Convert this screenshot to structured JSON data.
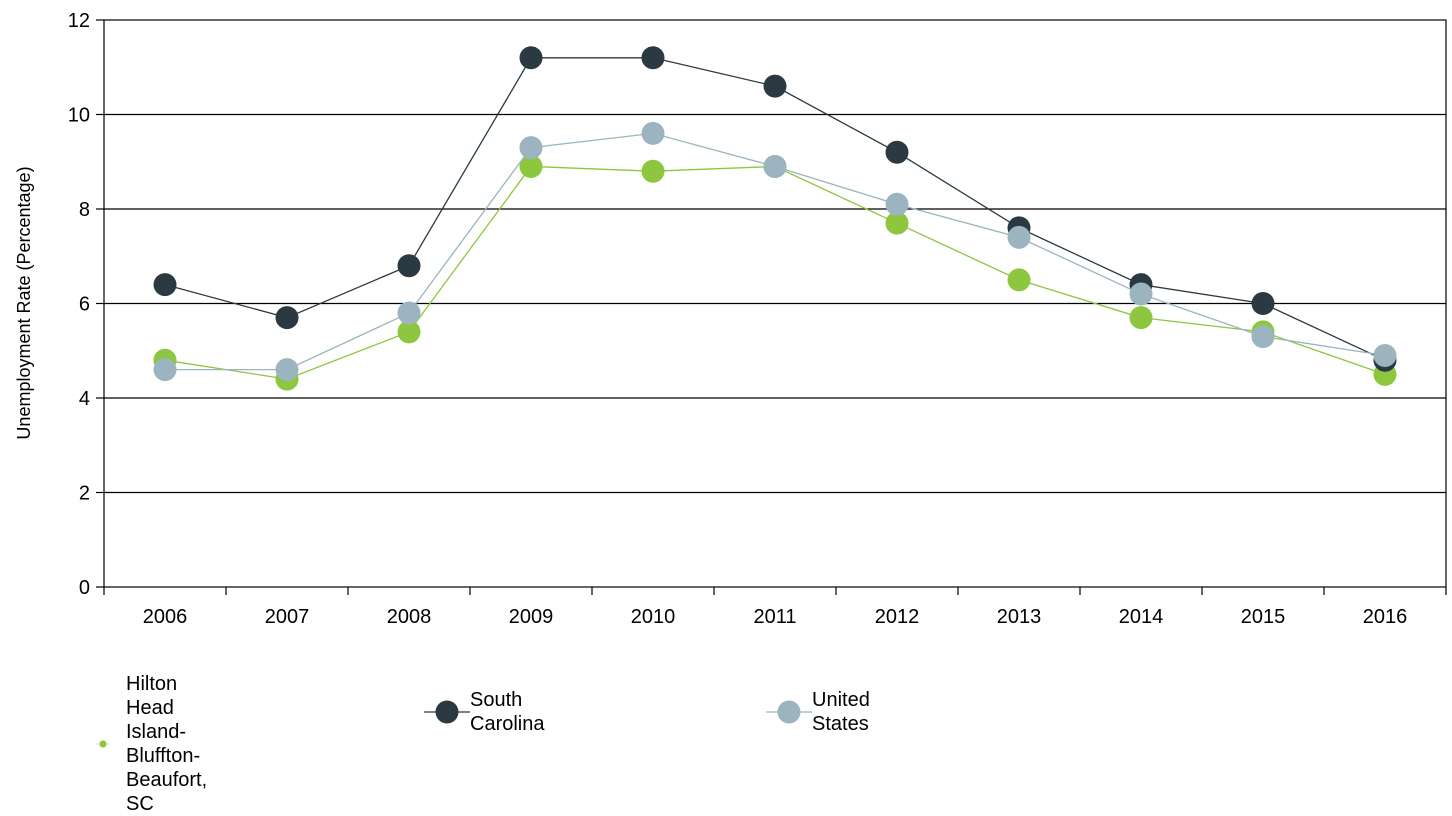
{
  "chart_data": {
    "type": "line",
    "title": "",
    "xlabel": "",
    "ylabel": "Unemployment Rate (Percentage)",
    "ylim": [
      0,
      12
    ],
    "yticks": [
      0,
      2,
      4,
      6,
      8,
      10,
      12
    ],
    "grid": "horizontal",
    "legend_position": "bottom-left",
    "categories": [
      "2006",
      "2007",
      "2008",
      "2009",
      "2010",
      "2011",
      "2012",
      "2013",
      "2014",
      "2015",
      "2016"
    ],
    "series": [
      {
        "name": "Hilton Head Island-Bluffton-Beaufort, SC",
        "name_lines": [
          "Hilton Head",
          "Island-Bluffton-Beaufort,",
          "SC"
        ],
        "color": "#8dc63f",
        "values": [
          4.8,
          4.4,
          5.4,
          8.9,
          8.8,
          8.9,
          7.7,
          6.5,
          5.7,
          5.4,
          4.5
        ]
      },
      {
        "name": "South Carolina",
        "color": "#2b3a42",
        "values": [
          6.4,
          5.7,
          6.8,
          11.2,
          11.2,
          10.6,
          9.2,
          7.6,
          6.4,
          6.0,
          4.8
        ]
      },
      {
        "name": "United States",
        "color": "#9bb4bf",
        "values": [
          4.6,
          4.6,
          5.8,
          9.3,
          9.6,
          8.9,
          8.1,
          7.4,
          6.2,
          5.3,
          4.9
        ]
      }
    ]
  }
}
